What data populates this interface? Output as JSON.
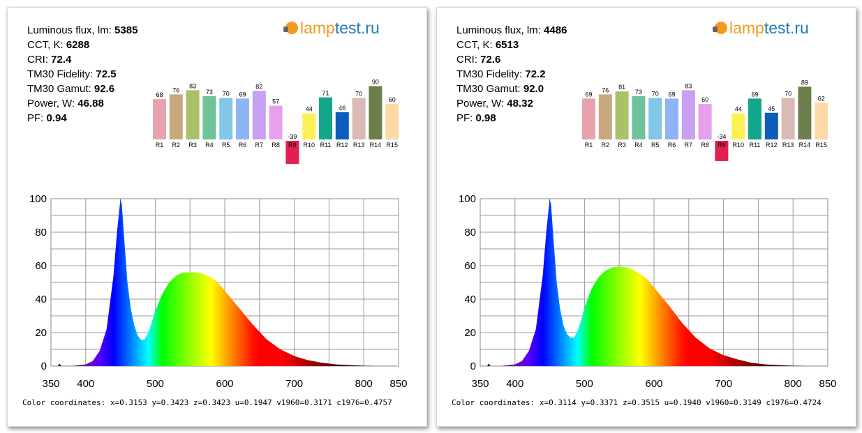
{
  "logo": {
    "part1": "lamp",
    "part2": "test.ru"
  },
  "chart_data": [
    {
      "type": "bar",
      "categories": [
        "R1",
        "R2",
        "R3",
        "R4",
        "R5",
        "R6",
        "R7",
        "R8",
        "R9",
        "R10",
        "R11",
        "R12",
        "R13",
        "R14",
        "R15"
      ],
      "values": [
        68,
        76,
        83,
        73,
        70,
        69,
        82,
        57,
        -39,
        44,
        71,
        46,
        70,
        90,
        60
      ],
      "colors": [
        "#e7a3ad",
        "#c9a77c",
        "#a9c26a",
        "#6fc39b",
        "#82c6e8",
        "#8fb4f5",
        "#c7a0f1",
        "#e7a1ec",
        "#e1204f",
        "#fbf155",
        "#12a68b",
        "#0c5cbc",
        "#d9bab5",
        "#6d7e4d",
        "#fdd9a7"
      ]
    },
    {
      "type": "area",
      "xlim": [
        350,
        850
      ],
      "ylim": [
        0,
        100
      ],
      "xticks": [
        350,
        400,
        500,
        600,
        700,
        800,
        850
      ],
      "yticks": [
        0,
        20,
        40,
        60,
        80,
        100
      ],
      "grid": true,
      "x": [
        360,
        362,
        365,
        380,
        400,
        410,
        420,
        430,
        440,
        445,
        450,
        452,
        455,
        460,
        465,
        470,
        475,
        480,
        485,
        490,
        495,
        500,
        510,
        520,
        530,
        540,
        550,
        560,
        570,
        580,
        590,
        600,
        620,
        640,
        660,
        680,
        700,
        720,
        740,
        760,
        780,
        800,
        820,
        850
      ],
      "y": [
        0,
        1.5,
        0,
        0,
        1,
        3,
        9,
        22,
        54,
        80,
        100,
        96,
        78,
        50,
        34,
        24,
        18,
        15.5,
        16,
        20,
        26,
        33,
        43,
        50,
        54,
        56,
        56,
        56,
        55,
        53,
        50,
        45,
        35,
        25,
        16,
        10,
        6,
        3.5,
        2,
        1,
        0.5,
        0.2,
        0,
        0
      ]
    },
    {
      "type": "bar",
      "categories": [
        "R1",
        "R2",
        "R3",
        "R4",
        "R5",
        "R6",
        "R7",
        "R8",
        "R9",
        "R10",
        "R11",
        "R12",
        "R13",
        "R14",
        "R15"
      ],
      "values": [
        69,
        76,
        81,
        73,
        70,
        69,
        83,
        60,
        -34,
        44,
        69,
        45,
        70,
        89,
        62
      ],
      "colors": [
        "#e7a3ad",
        "#c9a77c",
        "#a9c26a",
        "#6fc39b",
        "#82c6e8",
        "#8fb4f5",
        "#c7a0f1",
        "#e7a1ec",
        "#e1204f",
        "#fbf155",
        "#12a68b",
        "#0c5cbc",
        "#d9bab5",
        "#6d7e4d",
        "#fdd9a7"
      ]
    },
    {
      "type": "area",
      "xlim": [
        350,
        850
      ],
      "ylim": [
        0,
        100
      ],
      "xticks": [
        350,
        400,
        500,
        600,
        700,
        800,
        850
      ],
      "yticks": [
        0,
        20,
        40,
        60,
        80,
        100
      ],
      "grid": true,
      "x": [
        360,
        362,
        365,
        380,
        400,
        410,
        420,
        430,
        440,
        445,
        450,
        452,
        455,
        460,
        465,
        470,
        475,
        480,
        485,
        490,
        495,
        500,
        510,
        520,
        530,
        540,
        550,
        560,
        570,
        580,
        590,
        600,
        620,
        640,
        660,
        680,
        700,
        720,
        740,
        760,
        780,
        800,
        820,
        850
      ],
      "y": [
        0,
        1.5,
        0,
        0,
        1,
        3,
        9,
        22,
        54,
        80,
        100,
        96,
        78,
        50,
        34,
        24,
        19,
        17,
        17,
        21,
        27,
        35,
        46,
        53,
        57,
        59,
        59.5,
        59,
        57.5,
        55,
        52,
        47,
        37,
        26,
        17,
        10.5,
        6.5,
        4,
        2,
        1,
        0.5,
        0.2,
        0,
        0
      ]
    }
  ],
  "panels": [
    {
      "stats": {
        "flux_label": "Luminous flux, lm: ",
        "flux": "5385",
        "cct_label": "CCT, K: ",
        "cct": "6288",
        "cri_label": "CRI: ",
        "cri": "72.4",
        "fid_label": "TM30 Fidelity: ",
        "fid": "72.5",
        "gamut_label": "TM30 Gamut: ",
        "gamut": "92.6",
        "power_label": "Power, W:  ",
        "power": "46.88",
        "pf_label": "PF:  ",
        "pf": "0.94"
      },
      "coords": "Color coordinates: x=0.3153 y=0.3423 z=0.3423 u=0.1947 v1960=0.3171 c1976=0.4757"
    },
    {
      "stats": {
        "flux_label": "Luminous flux, lm: ",
        "flux": "4486",
        "cct_label": "CCT, K: ",
        "cct": "6513",
        "cri_label": "CRI: ",
        "cri": "72.6",
        "fid_label": "TM30 Fidelity: ",
        "fid": "72.2",
        "gamut_label": "TM30 Gamut: ",
        "gamut": "92.0",
        "power_label": "Power, W:  ",
        "power": "48.32",
        "pf_label": "PF:  ",
        "pf": "0.98"
      },
      "coords": "Color coordinates: x=0.3114 y=0.3371 z=0.3515 u=0.1940 v1960=0.3149 c1976=0.4724"
    }
  ]
}
